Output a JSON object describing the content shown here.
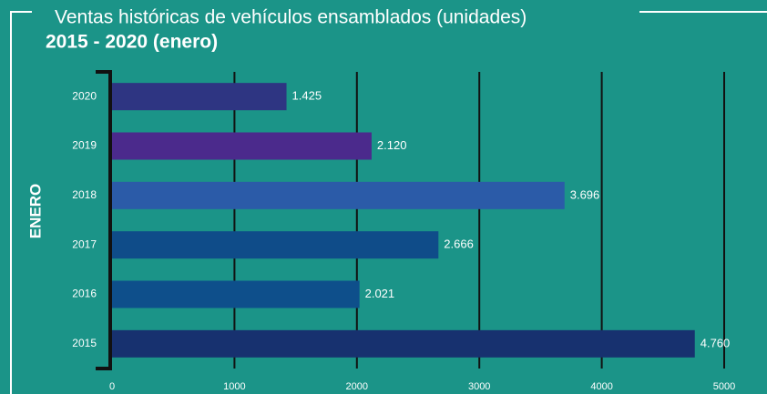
{
  "chart_data": {
    "type": "bar",
    "orientation": "horizontal",
    "title": "Ventas históricas de vehículos ensamblados (unidades)",
    "subtitle": "2015 - 2020 (enero)",
    "y_label": "ENERO",
    "categories": [
      "2020",
      "2019",
      "2018",
      "2017",
      "2016",
      "2015"
    ],
    "values": [
      1425,
      2120,
      3696,
      2666,
      2021,
      4760
    ],
    "value_labels": [
      "1.425",
      "2.120",
      "3.696",
      "2.666",
      "2.021",
      "4.760"
    ],
    "colors": [
      "#2e3582",
      "#4b2a8c",
      "#2b5ba8",
      "#0f4c89",
      "#0e4f8b",
      "#17316f"
    ],
    "xlim": [
      0,
      5000
    ],
    "xticks": [
      0,
      1000,
      2000,
      3000,
      4000,
      5000
    ],
    "grid": true
  }
}
